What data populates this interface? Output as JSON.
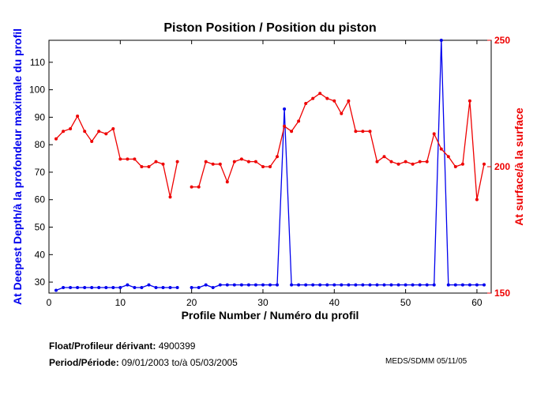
{
  "chart_data": {
    "type": "line",
    "title": "Piston Position / Position du piston",
    "xlabel": "Profile Number / Numéro du profil",
    "ylabel_left": "At Deepest Depth/à la profondeur maximale du profil",
    "ylabel_right": "At surface/à la surface",
    "xlim": [
      0,
      62
    ],
    "ylim_left": [
      26,
      118
    ],
    "ylim_right": [
      150,
      250
    ],
    "xticks": [
      0,
      10,
      20,
      30,
      40,
      50,
      60
    ],
    "yticks_left": [
      30,
      40,
      50,
      60,
      70,
      80,
      90,
      100,
      110
    ],
    "yticks_right": [
      150,
      200,
      250
    ],
    "series": [
      {
        "name": "At Deepest Depth",
        "axis": "left",
        "color": "#0000ee",
        "x": [
          1,
          2,
          3,
          4,
          5,
          6,
          7,
          8,
          9,
          10,
          11,
          12,
          13,
          14,
          15,
          16,
          17,
          18,
          null,
          20,
          21,
          22,
          23,
          24,
          25,
          26,
          27,
          28,
          29,
          30,
          31,
          32,
          33,
          34,
          35,
          36,
          37,
          38,
          39,
          40,
          41,
          42,
          43,
          44,
          45,
          46,
          47,
          48,
          49,
          50,
          51,
          52,
          53,
          54,
          55,
          56,
          57,
          58,
          59,
          60,
          61
        ],
        "values": [
          27,
          28,
          28,
          28,
          28,
          28,
          28,
          28,
          28,
          28,
          29,
          28,
          28,
          29,
          28,
          28,
          28,
          28,
          null,
          28,
          28,
          29,
          28,
          29,
          29,
          29,
          29,
          29,
          29,
          29,
          29,
          29,
          93,
          29,
          29,
          29,
          29,
          29,
          29,
          29,
          29,
          29,
          29,
          29,
          29,
          29,
          29,
          29,
          29,
          29,
          29,
          29,
          29,
          29,
          118,
          29,
          29,
          29,
          29,
          29,
          29
        ]
      },
      {
        "name": "At surface",
        "axis": "right",
        "color": "#ee0000",
        "x": [
          1,
          2,
          3,
          4,
          5,
          6,
          7,
          8,
          9,
          10,
          11,
          12,
          13,
          14,
          15,
          16,
          17,
          18,
          null,
          20,
          21,
          22,
          23,
          24,
          25,
          26,
          27,
          28,
          29,
          30,
          31,
          32,
          33,
          34,
          35,
          36,
          37,
          38,
          39,
          40,
          41,
          42,
          43,
          44,
          45,
          46,
          47,
          48,
          49,
          50,
          51,
          52,
          53,
          54,
          55,
          56,
          57,
          58,
          59,
          60,
          61
        ],
        "values": [
          211,
          214,
          215,
          220,
          214,
          210,
          214,
          213,
          215,
          203,
          203,
          203,
          200,
          200,
          202,
          201,
          188,
          202,
          null,
          192,
          192,
          202,
          201,
          201,
          194,
          202,
          203,
          202,
          202,
          200,
          200,
          204,
          216,
          214,
          218,
          225,
          227,
          229,
          227,
          226,
          221,
          226,
          214,
          214,
          214,
          202,
          204,
          202,
          201,
          202,
          201,
          202,
          202,
          213,
          207,
          204,
          200,
          201,
          226,
          187,
          201
        ]
      }
    ]
  },
  "footer": {
    "float_label": "Float/Profileur dérivant:",
    "float_id": "4900399",
    "period_label": "Period/Période:",
    "period_start": "09/01/2003",
    "period_to": "to/à",
    "period_end": "05/03/2005",
    "credit": "MEDS/SDMM",
    "credit_date": "05/11/05"
  }
}
